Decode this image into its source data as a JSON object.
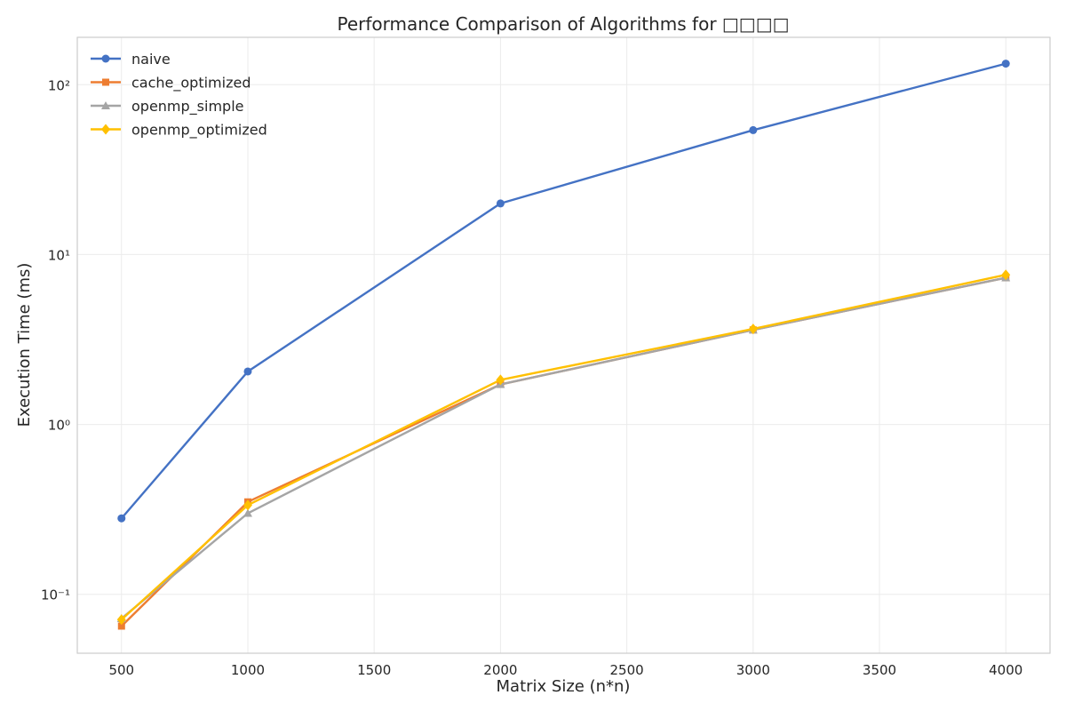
{
  "chart_data": {
    "type": "line",
    "title": "Performance Comparison of Algorithms for □□□□",
    "xlabel": "Matrix Size (n*n)",
    "ylabel": "Execution Time (ms)",
    "y_scale": "log",
    "xlim": [
      325,
      4175
    ],
    "ylim": [
      0.045,
      190
    ],
    "x_ticks": [
      500,
      1000,
      1500,
      2000,
      2500,
      3000,
      3500,
      4000
    ],
    "x_tick_labels": [
      "500",
      "1000",
      "1500",
      "2000",
      "2500",
      "3000",
      "3500",
      "4000"
    ],
    "y_ticks": [
      0.1,
      1,
      10,
      100
    ],
    "y_tick_labels": [
      "10⁻¹",
      "10⁰",
      "10¹",
      "10²"
    ],
    "grid": true,
    "legend_position": "top-left",
    "x": [
      500,
      1000,
      2000,
      3000,
      4000
    ],
    "series": [
      {
        "name": "naive",
        "color": "#4472c4",
        "marker": "circle",
        "values": [
          0.28,
          2.05,
          20.0,
          54.0,
          133.0
        ]
      },
      {
        "name": "cache_optimized",
        "color": "#ed7d31",
        "marker": "square",
        "values": [
          0.065,
          0.35,
          1.72,
          3.6,
          7.3
        ]
      },
      {
        "name": "openmp_simple",
        "color": "#a5a5a5",
        "marker": "triangle",
        "values": [
          0.072,
          0.3,
          1.72,
          3.6,
          7.3
        ]
      },
      {
        "name": "openmp_optimized",
        "color": "#ffc000",
        "marker": "diamond",
        "values": [
          0.071,
          0.335,
          1.83,
          3.65,
          7.6
        ]
      }
    ]
  }
}
